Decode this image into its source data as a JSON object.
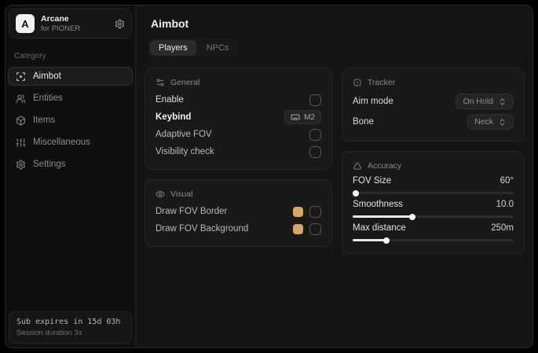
{
  "app": {
    "logo_letter": "A",
    "name": "Arcane",
    "subtitle": "for PIONER"
  },
  "sidebar": {
    "category_label": "Category",
    "items": [
      {
        "label": "Aimbot",
        "icon": "crosshair-scan-icon",
        "active": true
      },
      {
        "label": "Entities",
        "icon": "users-icon",
        "active": false
      },
      {
        "label": "Items",
        "icon": "package-icon",
        "active": false
      },
      {
        "label": "Miscellaneous",
        "icon": "sliders-icon",
        "active": false
      },
      {
        "label": "Settings",
        "icon": "gear-icon",
        "active": false
      }
    ],
    "footer": {
      "line1": "Sub expires in 15d 03h",
      "line2": "Session duration 3s"
    }
  },
  "main": {
    "title": "Aimbot",
    "tabs": [
      {
        "label": "Players",
        "active": true
      },
      {
        "label": "NPCs",
        "active": false
      }
    ],
    "cards": {
      "general": {
        "title": "General",
        "rows": [
          {
            "label": "Enable",
            "control": "checkbox",
            "checked": false
          },
          {
            "label": "Keybind",
            "control": "keybadge",
            "value": "M2"
          },
          {
            "label": "Adaptive FOV",
            "control": "checkbox",
            "checked": false
          },
          {
            "label": "Visibility check",
            "control": "checkbox",
            "checked": false
          }
        ]
      },
      "visual": {
        "title": "Visual",
        "rows": [
          {
            "label": "Draw FOV Border",
            "control": "color+checkbox",
            "color": "#d9a860",
            "checked": false
          },
          {
            "label": "Draw FOV Background",
            "control": "color+checkbox",
            "color": "#d9a860",
            "checked": false
          }
        ]
      },
      "tracker": {
        "title": "Tracker",
        "rows": [
          {
            "label": "Aim mode",
            "control": "select",
            "value": "On Hold"
          },
          {
            "label": "Bone",
            "control": "select",
            "value": "Neck"
          }
        ]
      },
      "accuracy": {
        "title": "Accuracy",
        "rows": [
          {
            "label": "FOV Size",
            "value": "60°",
            "percent": 2
          },
          {
            "label": "Smoothness",
            "value": "10.0",
            "percent": 37
          },
          {
            "label": "Max distance",
            "value": "250m",
            "percent": 21
          }
        ]
      }
    }
  },
  "colors": {
    "accent_swatch": "#d9a860",
    "slider_fill": "#e9e9e9"
  }
}
